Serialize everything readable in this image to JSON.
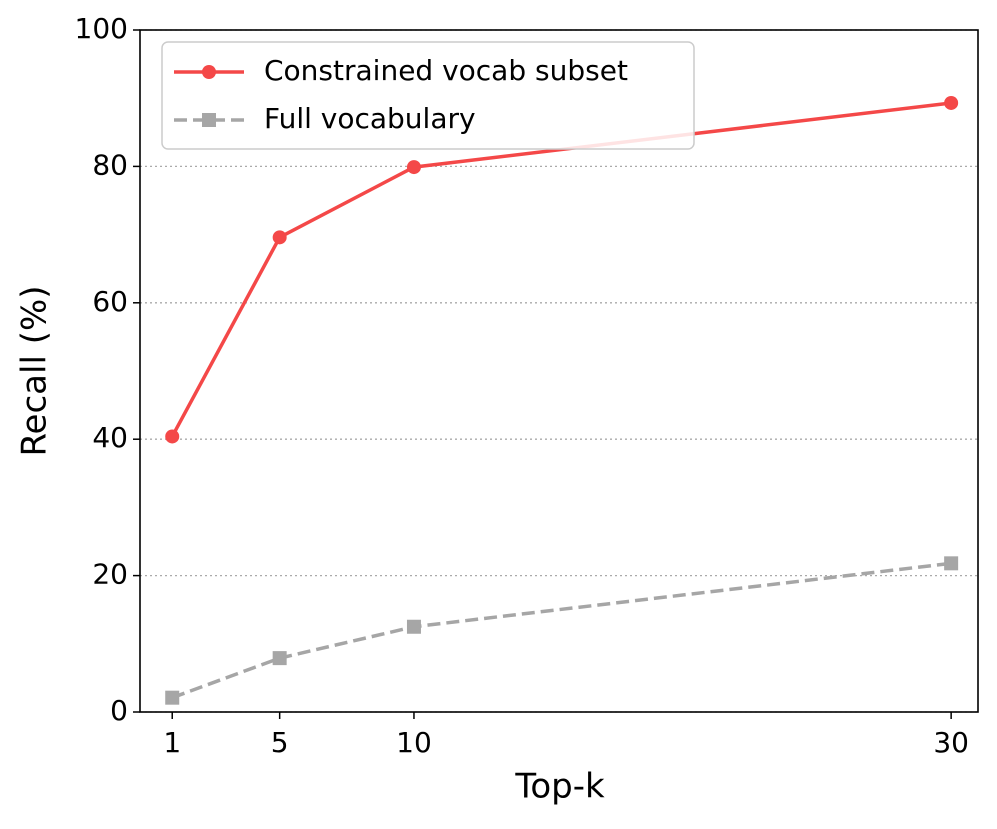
{
  "chart_data": {
    "type": "line",
    "xlabel": "Top-k",
    "ylabel": "Recall (%)",
    "x": [
      1,
      5,
      10,
      30
    ],
    "series": [
      {
        "name": "Constrained vocab subset",
        "color": "#f44848",
        "marker": "circle",
        "dash": "solid",
        "values": [
          40.4,
          69.6,
          79.9,
          89.3
        ]
      },
      {
        "name": "Full vocabulary",
        "color": "#a6a6a6",
        "marker": "square",
        "dash": "dashed",
        "values": [
          2.1,
          7.9,
          12.5,
          21.8
        ]
      }
    ],
    "xlim": [
      -0.2,
      31.0
    ],
    "xticks": [
      1,
      5,
      10,
      30
    ],
    "ylim": [
      0,
      100
    ],
    "yticks": [
      0,
      20,
      40,
      60,
      80,
      100
    ],
    "grid": true,
    "legend": "upper-left"
  }
}
